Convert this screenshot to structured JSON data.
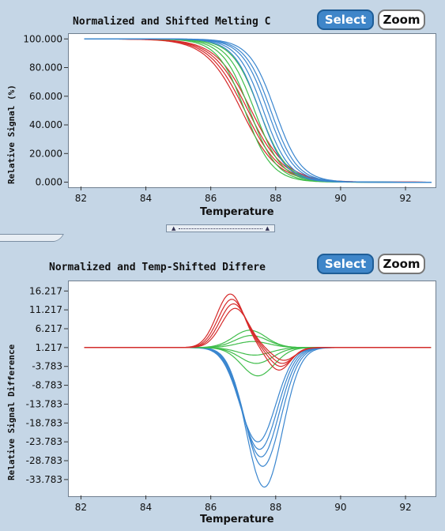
{
  "top_panel": {
    "title": "Normalized and Shifted Melting C",
    "select_label": "Select",
    "zoom_label": "Zoom",
    "ylabel": "Relative Signal (%)",
    "xlabel": "Temperature"
  },
  "bottom_panel": {
    "title": "Normalized and Temp-Shifted Differe",
    "select_label": "Select",
    "zoom_label": "Zoom",
    "ylabel": "Relative Signal Difference",
    "xlabel": "Temperature"
  },
  "scroller": {
    "left_arrow": "▲",
    "right_arrow": "▲"
  },
  "colors": {
    "red": "#d62a2a",
    "green": "#3fbd4a",
    "blue": "#3a86cf"
  },
  "chart_data": [
    {
      "type": "line",
      "title": "Normalized and Shifted Melting C",
      "xlabel": "Temperature",
      "ylabel": "Relative Signal (%)",
      "xlim": [
        81.6,
        92.9
      ],
      "ylim": [
        -3,
        104
      ],
      "xticks": [
        82,
        84,
        86,
        88,
        90,
        92
      ],
      "yticks": [
        "100.000",
        "80.000",
        "60.000",
        "40.000",
        "20.000",
        "0.000"
      ],
      "ytick_values": [
        100,
        80,
        60,
        40,
        20,
        0
      ],
      "groups": [
        {
          "color": "red",
          "midpoints": [
            86.95,
            87.05,
            87.15,
            87.25
          ],
          "width": 0.55
        },
        {
          "color": "green",
          "midpoints": [
            87.05,
            87.2,
            87.35,
            87.5
          ],
          "width": 0.42
        },
        {
          "color": "blue",
          "midpoints": [
            87.5,
            87.62,
            87.75,
            87.85,
            87.98
          ],
          "width": 0.4
        }
      ]
    },
    {
      "type": "line",
      "title": "Normalized and Temp-Shifted Differe",
      "xlabel": "Temperature",
      "ylabel": "Relative Signal Difference",
      "xlim": [
        81.6,
        92.9
      ],
      "ylim": [
        -38,
        19
      ],
      "xticks": [
        82,
        84,
        86,
        88,
        90,
        92
      ],
      "yticks": [
        "16.217",
        "11.217",
        "6.217",
        "1.217",
        "-3.783",
        "-8.783",
        "-13.783",
        "-18.783",
        "-23.783",
        "-28.783",
        "-33.783"
      ],
      "ytick_values": [
        16.217,
        11.217,
        6.217,
        1.217,
        -3.783,
        -8.783,
        -13.783,
        -18.783,
        -23.783,
        -28.783,
        -33.783
      ],
      "baseline": 1.217,
      "red_peaks": [
        {
          "x": 86.6,
          "amp": 14.2
        },
        {
          "x": 86.65,
          "amp": 12.8
        },
        {
          "x": 86.7,
          "amp": 11.6
        },
        {
          "x": 86.75,
          "amp": 10.4
        }
      ],
      "red_troughs": [
        {
          "x": 88.1,
          "amp": -6.0
        },
        {
          "x": 88.15,
          "amp": -5.0
        },
        {
          "x": 88.2,
          "amp": -4.2
        },
        {
          "x": 88.25,
          "amp": -3.4
        }
      ],
      "green_curves": [
        {
          "x": 87.2,
          "amp": 4.6
        },
        {
          "x": 87.25,
          "amp": 3.2
        },
        {
          "x": 87.3,
          "amp": 1.6
        },
        {
          "x": 87.35,
          "amp": -2.0
        },
        {
          "x": 87.4,
          "amp": -4.2
        },
        {
          "x": 87.45,
          "amp": -7.5
        }
      ],
      "blue_curves": [
        {
          "x": 87.45,
          "amp": -25.0
        },
        {
          "x": 87.5,
          "amp": -27.0
        },
        {
          "x": 87.55,
          "amp": -29.0
        },
        {
          "x": 87.6,
          "amp": -31.5
        },
        {
          "x": 87.65,
          "amp": -37.0
        }
      ]
    }
  ]
}
